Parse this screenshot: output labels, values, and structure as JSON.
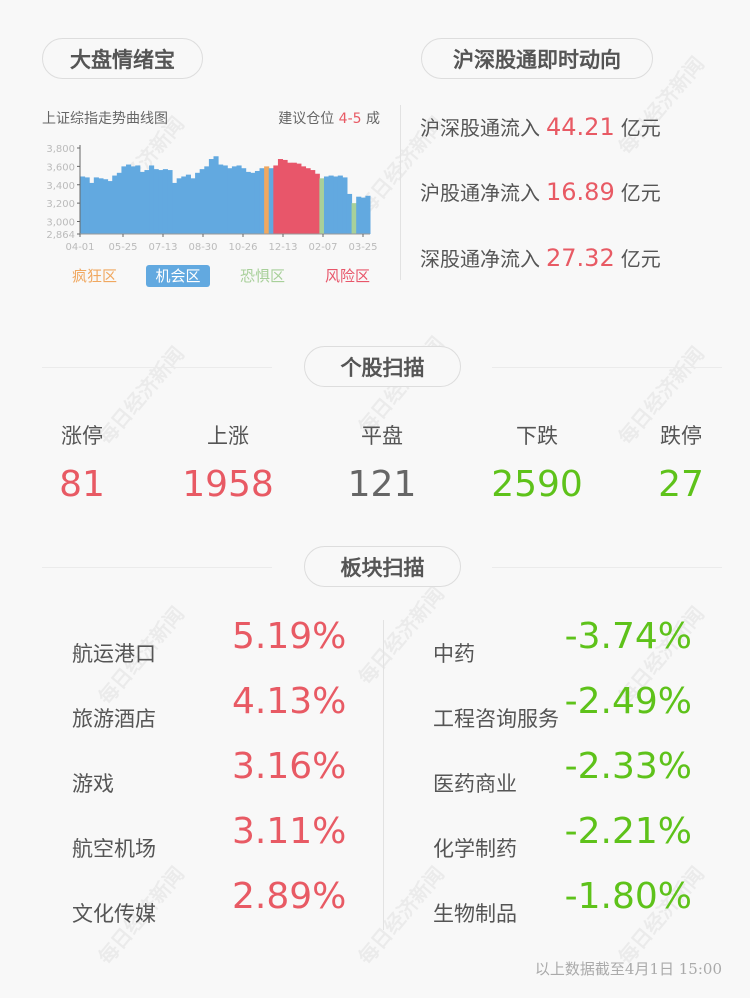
{
  "watermark": "每日经济新闻",
  "sentiment": {
    "title": "大盘情绪宝",
    "chart_title": "上证综指走势曲线图",
    "suggest_label": "建议仓位",
    "suggest_value": "4-5",
    "suggest_unit": "成",
    "legend": [
      {
        "label": "疯狂区",
        "color": "#f0a860",
        "zone": "crazy"
      },
      {
        "label": "机会区",
        "color": "#62a9e0",
        "zone": "opportunity",
        "selected": true
      },
      {
        "label": "恐惧区",
        "color": "#a8d09a",
        "zone": "fear"
      },
      {
        "label": "风险区",
        "color": "#e8566a",
        "zone": "risk"
      }
    ]
  },
  "chart_data": {
    "type": "area",
    "title": "上证综指走势曲线图",
    "y_ticks": [
      "3,800",
      "3,600",
      "3,400",
      "3,200",
      "3,000",
      "2,864"
    ],
    "ylim": [
      2864,
      3800
    ],
    "x_ticks": [
      "04-01",
      "05-25",
      "07-13",
      "08-30",
      "10-26",
      "12-13",
      "02-07",
      "03-25"
    ],
    "values": [
      3490,
      3480,
      3420,
      3480,
      3470,
      3460,
      3440,
      3500,
      3530,
      3600,
      3620,
      3600,
      3610,
      3540,
      3560,
      3610,
      3570,
      3560,
      3570,
      3560,
      3420,
      3470,
      3490,
      3510,
      3470,
      3530,
      3570,
      3600,
      3680,
      3710,
      3620,
      3610,
      3580,
      3600,
      3610,
      3580,
      3540,
      3530,
      3550,
      3580,
      3600,
      3580,
      3610,
      3680,
      3670,
      3640,
      3640,
      3630,
      3600,
      3580,
      3560,
      3520,
      3470,
      3490,
      3500,
      3490,
      3500,
      3480,
      3300,
      3200,
      3270,
      3260,
      3280
    ],
    "zones": [
      "opportunity",
      "opportunity",
      "opportunity",
      "opportunity",
      "opportunity",
      "opportunity",
      "opportunity",
      "opportunity",
      "opportunity",
      "opportunity",
      "opportunity",
      "opportunity",
      "opportunity",
      "opportunity",
      "opportunity",
      "opportunity",
      "opportunity",
      "opportunity",
      "opportunity",
      "opportunity",
      "opportunity",
      "opportunity",
      "opportunity",
      "opportunity",
      "opportunity",
      "opportunity",
      "opportunity",
      "opportunity",
      "opportunity",
      "opportunity",
      "opportunity",
      "opportunity",
      "opportunity",
      "opportunity",
      "opportunity",
      "opportunity",
      "opportunity",
      "opportunity",
      "opportunity",
      "opportunity",
      "crazy",
      "opportunity",
      "risk",
      "risk",
      "risk",
      "risk",
      "risk",
      "risk",
      "risk",
      "risk",
      "risk",
      "risk",
      "fear",
      "opportunity",
      "opportunity",
      "opportunity",
      "opportunity",
      "opportunity",
      "opportunity",
      "fear",
      "opportunity",
      "opportunity",
      "opportunity"
    ]
  },
  "connect": {
    "title": "沪深股通即时动向",
    "rows": [
      {
        "label": "沪深股通流入",
        "value": "44.21",
        "unit": "亿元"
      },
      {
        "label": "沪股通净流入",
        "value": "16.89",
        "unit": "亿元"
      },
      {
        "label": "深股通净流入",
        "value": "27.32",
        "unit": "亿元"
      }
    ]
  },
  "stocks": {
    "title": "个股扫描",
    "items": [
      {
        "label": "涨停",
        "value": "81",
        "color": "red"
      },
      {
        "label": "上涨",
        "value": "1958",
        "color": "red"
      },
      {
        "label": "平盘",
        "value": "121",
        "color": "gray"
      },
      {
        "label": "下跌",
        "value": "2590",
        "color": "green"
      },
      {
        "label": "跌停",
        "value": "27",
        "color": "green"
      }
    ]
  },
  "sectors": {
    "title": "板块扫描",
    "gainers": [
      {
        "name": "航运港口",
        "value": "5.19%"
      },
      {
        "name": "旅游酒店",
        "value": "4.13%"
      },
      {
        "name": "游戏",
        "value": "3.16%"
      },
      {
        "name": "航空机场",
        "value": "3.11%"
      },
      {
        "name": "文化传媒",
        "value": "2.89%"
      }
    ],
    "losers": [
      {
        "name": "中药",
        "value": "-3.74%"
      },
      {
        "name": "工程咨询服务",
        "value": "-2.49%"
      },
      {
        "name": "医药商业",
        "value": "-2.33%"
      },
      {
        "name": "化学制药",
        "value": "-2.21%"
      },
      {
        "name": "生物制品",
        "value": "-1.80%"
      }
    ]
  },
  "footer": "以上数据截至4月1日 15:00"
}
